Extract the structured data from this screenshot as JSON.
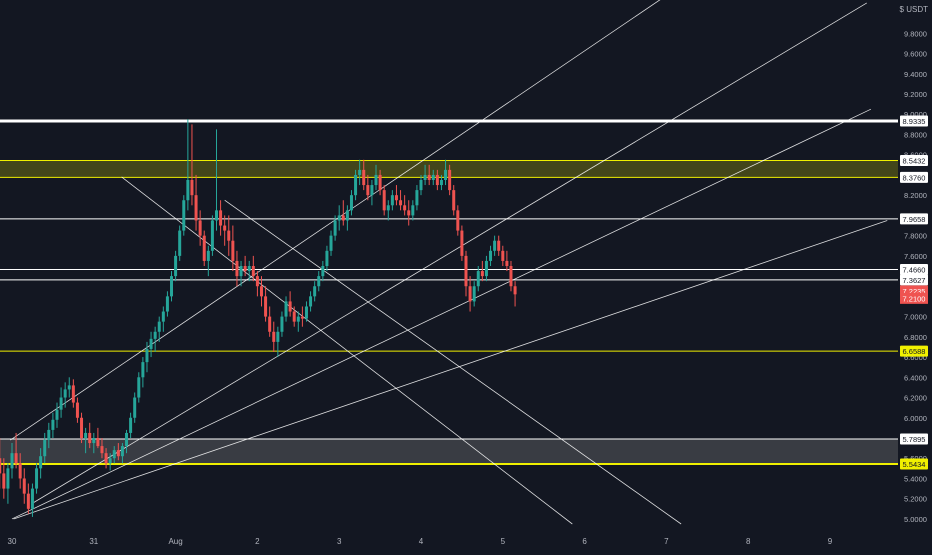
{
  "currency_label": "$ USDT",
  "colors": {
    "background": "#131722",
    "up": "#26a69a",
    "down": "#ef5350",
    "yellow": "#f0f000",
    "white": "#ffffff",
    "gray_zone": "#808080",
    "axis_text": "#b2b5be"
  },
  "chart_data": {
    "type": "candlestick",
    "title": "",
    "xlabel": "",
    "ylabel": "",
    "ylim": [
      4.95,
      10.05
    ],
    "grid": false,
    "x_ticks": [
      {
        "label": "30",
        "day": 0
      },
      {
        "label": "31",
        "day": 1
      },
      {
        "label": "Aug",
        "day": 2
      },
      {
        "label": "2",
        "day": 3
      },
      {
        "label": "3",
        "day": 4
      },
      {
        "label": "4",
        "day": 5
      },
      {
        "label": "5",
        "day": 6
      },
      {
        "label": "6",
        "day": 7
      },
      {
        "label": "7",
        "day": 8
      },
      {
        "label": "8",
        "day": 9
      },
      {
        "label": "9",
        "day": 10
      }
    ],
    "y_ticks": [
      "5.0000",
      "5.2000",
      "5.4000",
      "5.6000",
      "5.8000",
      "6.0000",
      "6.2000",
      "6.4000",
      "6.6000",
      "6.8000",
      "7.0000",
      "7.2000",
      "7.4000",
      "7.6000",
      "7.8000",
      "8.0000",
      "8.2000",
      "8.4000",
      "8.6000",
      "8.8000",
      "9.0000",
      "9.2000",
      "9.4000",
      "9.6000",
      "9.8000",
      "10.0000"
    ],
    "price_lines": [
      {
        "value": 8.9335,
        "label": "8.9335",
        "color": "#ffffff",
        "width": 3,
        "badge": "white"
      },
      {
        "value": 8.5432,
        "label": "8.5432",
        "color": "#f0f000",
        "width": 1,
        "badge": "white"
      },
      {
        "value": 8.376,
        "label": "8.3760",
        "color": "#f0f000",
        "width": 1,
        "badge": "white"
      },
      {
        "value": 7.9658,
        "label": "7.9658",
        "color": "#ffffff",
        "width": 1,
        "badge": "white"
      },
      {
        "value": 7.466,
        "label": "7.4660",
        "color": "#ffffff",
        "width": 1,
        "badge": "white"
      },
      {
        "value": 7.3627,
        "label": "7.3627",
        "color": "#ffffff",
        "width": 1,
        "badge": "white"
      },
      {
        "value": 6.6588,
        "label": "6.6588",
        "color": "#f0f000",
        "width": 1,
        "badge": "yellow"
      },
      {
        "value": 5.7895,
        "label": "5.7895",
        "color": "#ffffff",
        "width": 1,
        "badge": "white"
      },
      {
        "value": 5.5434,
        "label": "5.5434",
        "color": "#f0f000",
        "width": 2,
        "badge": "yellow"
      }
    ],
    "price_badges": [
      {
        "value": 7.2235,
        "label": "7.2235",
        "color": "#ef5350"
      },
      {
        "value": 7.21,
        "label": "7.2100",
        "color": "#ef5350"
      }
    ],
    "zones": [
      {
        "from": 8.376,
        "to": 8.5432,
        "color": "#f0f000",
        "opacity": 0.22
      },
      {
        "from": 5.5434,
        "to": 5.7895,
        "color": "#808080",
        "opacity": 0.35
      }
    ],
    "trendlines": [
      {
        "x1": -0.02,
        "y1": 5.78,
        "x2": 8.23,
        "y2": 10.3
      },
      {
        "x1": 0.24,
        "y1": 5.15,
        "x2": 10.45,
        "y2": 10.1
      },
      {
        "x1": 0.0,
        "y1": 5.0,
        "x2": 10.5,
        "y2": 9.05
      },
      {
        "x1": 0.02,
        "y1": 5.0,
        "x2": 10.7,
        "y2": 7.95
      },
      {
        "x1": 1.34,
        "y1": 8.38,
        "x2": 6.85,
        "y2": 4.95
      },
      {
        "x1": 2.6,
        "y1": 8.15,
        "x2": 8.18,
        "y2": 4.95
      }
    ],
    "ohlc_key": [
      "day",
      "open",
      "high",
      "low",
      "close"
    ],
    "candles": [
      [
        -0.15,
        5.6,
        5.8,
        5.3,
        5.45
      ],
      [
        -0.1,
        5.45,
        5.6,
        5.2,
        5.3
      ],
      [
        -0.05,
        5.3,
        5.55,
        5.15,
        5.5
      ],
      [
        0.0,
        5.5,
        5.75,
        5.4,
        5.65
      ],
      [
        0.05,
        5.65,
        5.85,
        5.5,
        5.55
      ],
      [
        0.1,
        5.55,
        5.65,
        5.3,
        5.4
      ],
      [
        0.15,
        5.4,
        5.5,
        5.15,
        5.25
      ],
      [
        0.2,
        5.25,
        5.35,
        5.05,
        5.1
      ],
      [
        0.25,
        5.1,
        5.35,
        5.02,
        5.3
      ],
      [
        0.3,
        5.3,
        5.55,
        5.25,
        5.5
      ],
      [
        0.35,
        5.5,
        5.7,
        5.4,
        5.62
      ],
      [
        0.4,
        5.62,
        5.85,
        5.55,
        5.78
      ],
      [
        0.45,
        5.78,
        5.95,
        5.7,
        5.88
      ],
      [
        0.5,
        5.88,
        6.05,
        5.8,
        5.98
      ],
      [
        0.55,
        5.98,
        6.15,
        5.9,
        6.08
      ],
      [
        0.6,
        6.08,
        6.3,
        6.0,
        6.2
      ],
      [
        0.65,
        6.2,
        6.35,
        6.1,
        6.28
      ],
      [
        0.7,
        6.28,
        6.4,
        6.2,
        6.32
      ],
      [
        0.75,
        6.32,
        6.38,
        6.1,
        6.15
      ],
      [
        0.8,
        6.15,
        6.2,
        5.95,
        6.0
      ],
      [
        0.85,
        6.0,
        6.05,
        5.75,
        5.8
      ],
      [
        0.9,
        5.8,
        5.9,
        5.65,
        5.85
      ],
      [
        0.95,
        5.85,
        5.95,
        5.7,
        5.75
      ],
      [
        1.0,
        5.75,
        5.85,
        5.65,
        5.8
      ],
      [
        1.05,
        5.8,
        5.9,
        5.7,
        5.72
      ],
      [
        1.1,
        5.72,
        5.8,
        5.6,
        5.65
      ],
      [
        1.15,
        5.65,
        5.7,
        5.5,
        5.55
      ],
      [
        1.2,
        5.55,
        5.65,
        5.48,
        5.6
      ],
      [
        1.25,
        5.6,
        5.72,
        5.55,
        5.68
      ],
      [
        1.3,
        5.68,
        5.75,
        5.58,
        5.62
      ],
      [
        1.35,
        5.62,
        5.75,
        5.55,
        5.72
      ],
      [
        1.4,
        5.72,
        5.88,
        5.65,
        5.85
      ],
      [
        1.45,
        5.85,
        6.05,
        5.8,
        6.0
      ],
      [
        1.5,
        6.0,
        6.25,
        5.95,
        6.2
      ],
      [
        1.55,
        6.2,
        6.45,
        6.15,
        6.4
      ],
      [
        1.6,
        6.4,
        6.6,
        6.3,
        6.55
      ],
      [
        1.65,
        6.55,
        6.75,
        6.45,
        6.68
      ],
      [
        1.7,
        6.68,
        6.85,
        6.6,
        6.78
      ],
      [
        1.75,
        6.78,
        6.9,
        6.65,
        6.85
      ],
      [
        1.8,
        6.85,
        7.0,
        6.75,
        6.95
      ],
      [
        1.85,
        6.95,
        7.1,
        6.85,
        7.05
      ],
      [
        1.9,
        7.05,
        7.25,
        7.0,
        7.2
      ],
      [
        1.95,
        7.2,
        7.45,
        7.15,
        7.4
      ],
      [
        2.0,
        7.4,
        7.65,
        7.35,
        7.6
      ],
      [
        2.05,
        7.6,
        7.9,
        7.55,
        7.85
      ],
      [
        2.1,
        7.85,
        8.2,
        7.8,
        8.15
      ],
      [
        2.15,
        8.15,
        8.95,
        8.05,
        8.35
      ],
      [
        2.2,
        8.35,
        8.9,
        8.1,
        8.2
      ],
      [
        2.25,
        8.2,
        8.4,
        7.85,
        7.95
      ],
      [
        2.3,
        7.95,
        8.05,
        7.7,
        7.8
      ],
      [
        2.35,
        7.8,
        7.85,
        7.5,
        7.55
      ],
      [
        2.4,
        7.55,
        7.7,
        7.4,
        7.65
      ],
      [
        2.45,
        7.65,
        8.0,
        7.6,
        7.95
      ],
      [
        2.5,
        7.95,
        8.85,
        7.85,
        8.05
      ],
      [
        2.55,
        8.05,
        8.15,
        7.8,
        7.9
      ],
      [
        2.6,
        7.9,
        8.0,
        7.7,
        7.85
      ],
      [
        2.65,
        7.85,
        8.0,
        7.6,
        7.75
      ],
      [
        2.7,
        7.75,
        7.9,
        7.45,
        7.55
      ],
      [
        2.75,
        7.55,
        7.65,
        7.3,
        7.4
      ],
      [
        2.8,
        7.4,
        7.55,
        7.3,
        7.5
      ],
      [
        2.85,
        7.5,
        7.6,
        7.4,
        7.45
      ],
      [
        2.9,
        7.45,
        7.55,
        7.35,
        7.5
      ],
      [
        2.95,
        7.5,
        7.6,
        7.35,
        7.4
      ],
      [
        3.0,
        7.4,
        7.45,
        7.2,
        7.3
      ],
      [
        3.05,
        7.3,
        7.4,
        7.1,
        7.2
      ],
      [
        3.1,
        7.2,
        7.3,
        6.95,
        7.0
      ],
      [
        3.15,
        7.0,
        7.1,
        6.8,
        6.85
      ],
      [
        3.2,
        6.85,
        6.95,
        6.65,
        6.75
      ],
      [
        3.25,
        6.75,
        6.9,
        6.6,
        6.85
      ],
      [
        3.3,
        6.85,
        7.05,
        6.8,
        7.0
      ],
      [
        3.35,
        7.0,
        7.2,
        6.95,
        7.15
      ],
      [
        3.4,
        7.15,
        7.25,
        7.0,
        7.05
      ],
      [
        3.45,
        7.05,
        7.1,
        6.9,
        6.95
      ],
      [
        3.5,
        6.95,
        7.05,
        6.85,
        7.0
      ],
      [
        3.55,
        7.0,
        7.1,
        6.9,
        6.98
      ],
      [
        3.6,
        6.98,
        7.15,
        6.95,
        7.1
      ],
      [
        3.65,
        7.1,
        7.25,
        7.05,
        7.2
      ],
      [
        3.7,
        7.2,
        7.35,
        7.15,
        7.3
      ],
      [
        3.75,
        7.3,
        7.45,
        7.25,
        7.4
      ],
      [
        3.8,
        7.4,
        7.55,
        7.35,
        7.5
      ],
      [
        3.85,
        7.5,
        7.7,
        7.45,
        7.65
      ],
      [
        3.9,
        7.65,
        7.85,
        7.6,
        7.8
      ],
      [
        3.95,
        7.8,
        8.0,
        7.75,
        7.95
      ],
      [
        4.0,
        7.95,
        8.1,
        7.85,
        8.0
      ],
      [
        4.05,
        8.0,
        8.15,
        7.9,
        7.95
      ],
      [
        4.1,
        7.95,
        8.1,
        7.85,
        8.05
      ],
      [
        4.15,
        8.05,
        8.25,
        8.0,
        8.2
      ],
      [
        4.2,
        8.2,
        8.45,
        8.15,
        8.4
      ],
      [
        4.25,
        8.4,
        8.55,
        8.3,
        8.45
      ],
      [
        4.3,
        8.45,
        8.55,
        8.25,
        8.3
      ],
      [
        4.35,
        8.3,
        8.4,
        8.15,
        8.2
      ],
      [
        4.4,
        8.2,
        8.35,
        8.1,
        8.3
      ],
      [
        4.45,
        8.3,
        8.5,
        8.25,
        8.4
      ],
      [
        4.5,
        8.4,
        8.45,
        8.2,
        8.25
      ],
      [
        4.55,
        8.25,
        8.3,
        8.0,
        8.05
      ],
      [
        4.6,
        8.05,
        8.15,
        7.95,
        8.1
      ],
      [
        4.65,
        8.1,
        8.25,
        8.05,
        8.2
      ],
      [
        4.7,
        8.2,
        8.3,
        8.1,
        8.15
      ],
      [
        4.75,
        8.15,
        8.25,
        8.05,
        8.1
      ],
      [
        4.8,
        8.1,
        8.2,
        8.0,
        8.05
      ],
      [
        4.85,
        8.05,
        8.15,
        7.9,
        8.0
      ],
      [
        4.9,
        8.0,
        8.15,
        7.95,
        8.1
      ],
      [
        4.95,
        8.1,
        8.3,
        8.05,
        8.25
      ],
      [
        5.0,
        8.25,
        8.4,
        8.2,
        8.35
      ],
      [
        5.05,
        8.35,
        8.5,
        8.3,
        8.4
      ],
      [
        5.1,
        8.4,
        8.5,
        8.3,
        8.35
      ],
      [
        5.15,
        8.35,
        8.45,
        8.3,
        8.4
      ],
      [
        5.2,
        8.4,
        8.45,
        8.25,
        8.3
      ],
      [
        5.25,
        8.3,
        8.4,
        8.25,
        8.35
      ],
      [
        5.3,
        8.35,
        8.55,
        8.3,
        8.45
      ],
      [
        5.35,
        8.45,
        8.5,
        8.2,
        8.25
      ],
      [
        5.4,
        8.25,
        8.3,
        8.0,
        8.05
      ],
      [
        5.45,
        8.05,
        8.1,
        7.8,
        7.85
      ],
      [
        5.5,
        7.85,
        7.9,
        7.55,
        7.6
      ],
      [
        5.55,
        7.6,
        7.65,
        7.2,
        7.3
      ],
      [
        5.6,
        7.3,
        7.4,
        7.05,
        7.15
      ],
      [
        5.65,
        7.15,
        7.35,
        7.1,
        7.3
      ],
      [
        5.7,
        7.3,
        7.5,
        7.25,
        7.45
      ],
      [
        5.75,
        7.45,
        7.55,
        7.35,
        7.4
      ],
      [
        5.8,
        7.4,
        7.6,
        7.35,
        7.55
      ],
      [
        5.85,
        7.55,
        7.7,
        7.5,
        7.65
      ],
      [
        5.9,
        7.65,
        7.8,
        7.6,
        7.75
      ],
      [
        5.95,
        7.75,
        7.8,
        7.6,
        7.65
      ],
      [
        6.0,
        7.65,
        7.7,
        7.5,
        7.55
      ],
      [
        6.05,
        7.55,
        7.65,
        7.45,
        7.5
      ],
      [
        6.1,
        7.5,
        7.55,
        7.25,
        7.3
      ],
      [
        6.15,
        7.3,
        7.35,
        7.1,
        7.22
      ]
    ]
  }
}
